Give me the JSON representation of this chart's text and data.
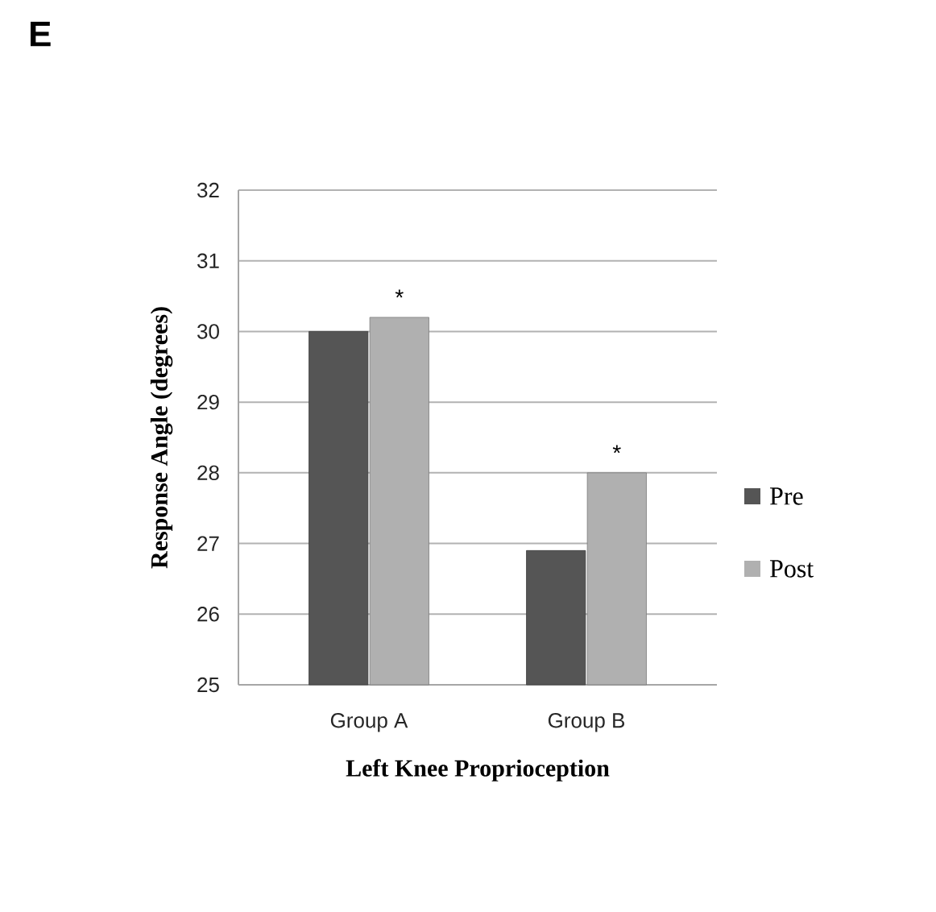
{
  "chart_data": {
    "type": "bar",
    "title": "E",
    "xlabel": "Left Knee Proprioception",
    "ylabel": "Response Angle (degrees)",
    "categories": [
      "Group A",
      "Group B"
    ],
    "series": [
      {
        "name": "Pre",
        "color": "#555555",
        "values": [
          30.0,
          26.9
        ]
      },
      {
        "name": "Post",
        "color": "#b0b0b0",
        "values": [
          30.2,
          28.0
        ]
      }
    ],
    "ylim": [
      25,
      32
    ],
    "yticks": [
      25,
      26,
      27,
      28,
      29,
      30,
      31,
      32
    ],
    "grid": "y",
    "legend": "right",
    "annotations": [
      {
        "text": "*",
        "x": "Group A",
        "y": 30.2
      },
      {
        "text": "*",
        "x": "Group B",
        "y": 28.0
      }
    ]
  }
}
